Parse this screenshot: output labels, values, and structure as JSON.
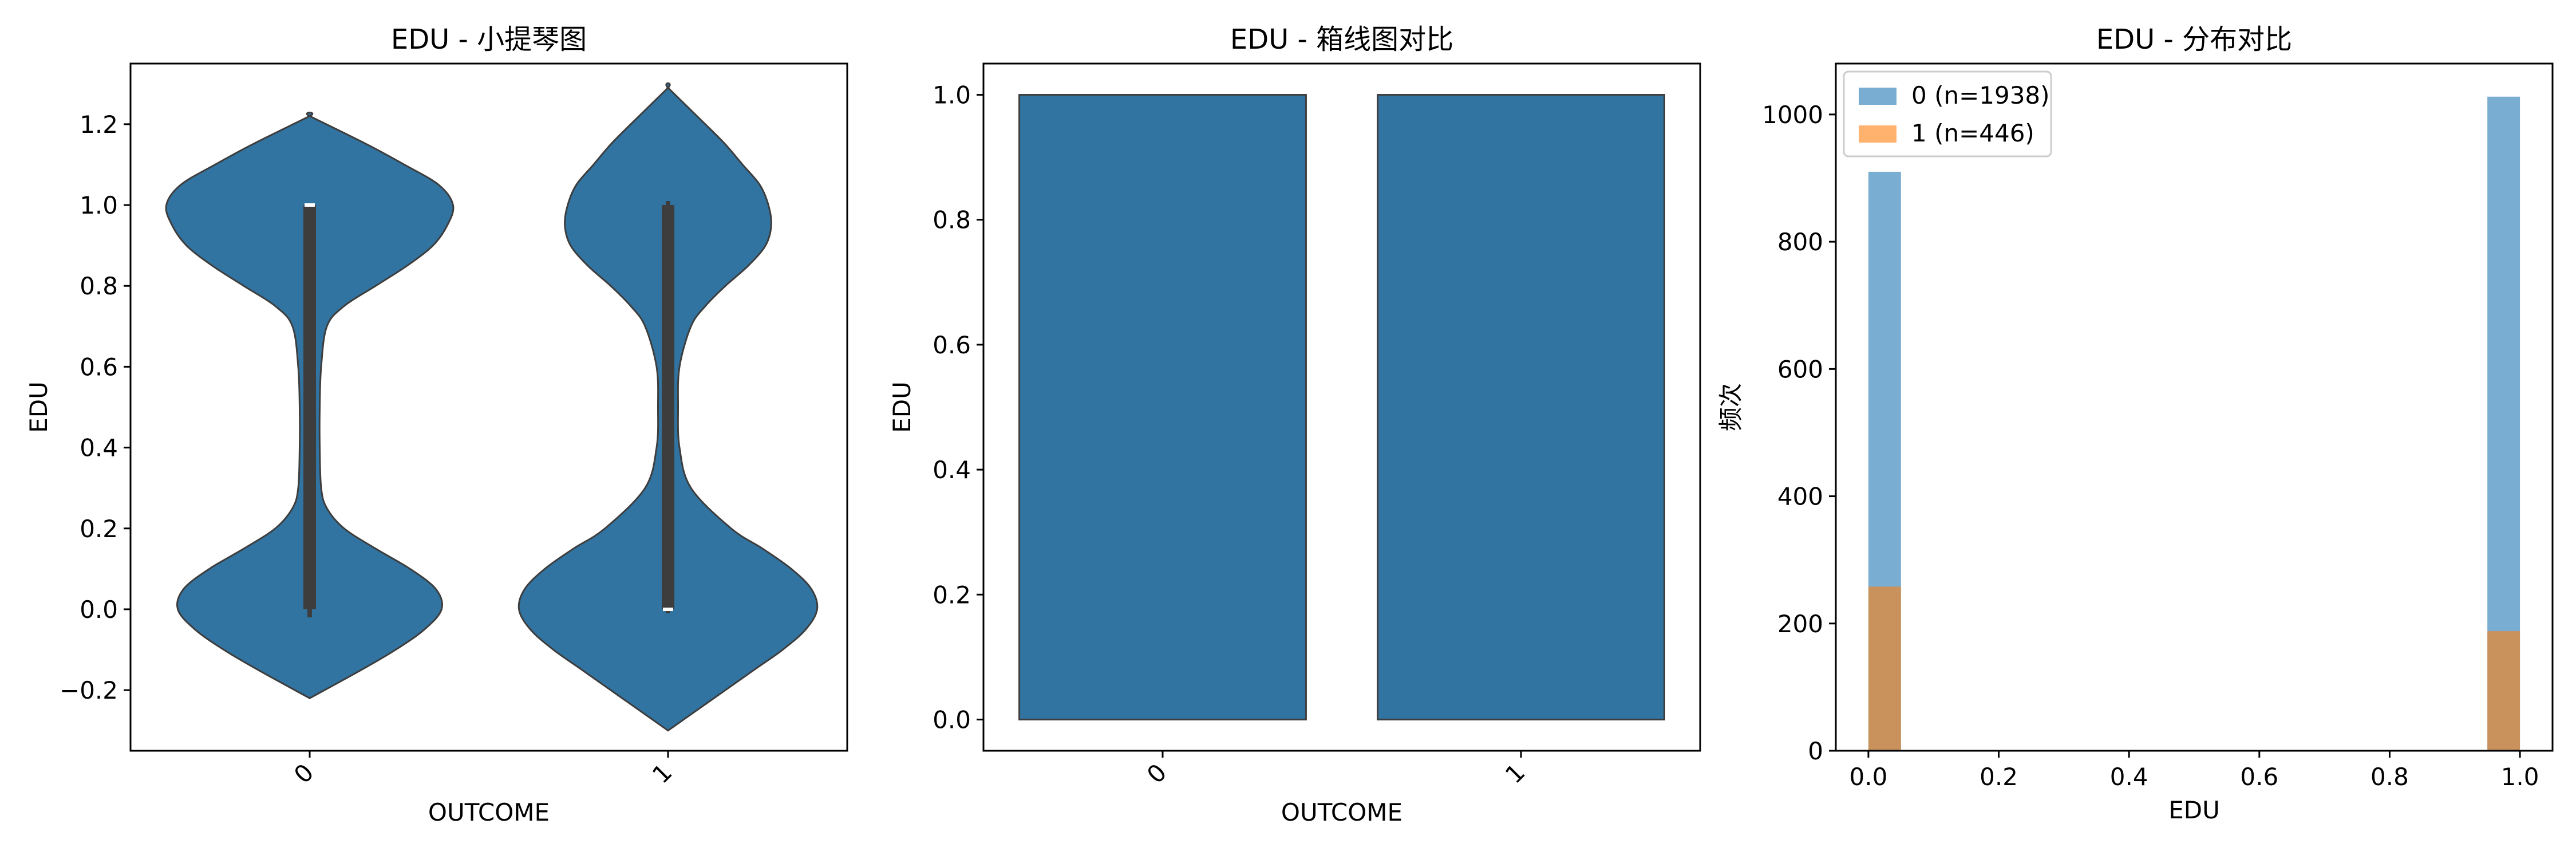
{
  "chart_data": [
    {
      "type": "violin",
      "title": "EDU - 小提琴图",
      "xlabel": "OUTCOME",
      "ylabel": "EDU",
      "categories": [
        "0",
        "1"
      ],
      "ylim": [
        -0.35,
        1.35
      ],
      "yticks": [
        -0.2,
        0.0,
        0.2,
        0.4,
        0.6,
        0.8,
        1.0,
        1.2
      ],
      "grid": false,
      "color": "#3274a1",
      "violins": [
        {
          "category": "0",
          "kde_y": [
            -0.22,
            -0.15,
            -0.1,
            -0.05,
            0.0,
            0.05,
            0.1,
            0.15,
            0.2,
            0.25,
            0.3,
            0.4,
            0.5,
            0.6,
            0.7,
            0.75,
            0.8,
            0.85,
            0.9,
            0.95,
            1.0,
            1.05,
            1.1,
            1.15,
            1.22
          ],
          "kde_halfwidth": [
            0.0,
            0.18,
            0.3,
            0.4,
            0.46,
            0.44,
            0.35,
            0.23,
            0.12,
            0.06,
            0.04,
            0.035,
            0.035,
            0.04,
            0.06,
            0.12,
            0.23,
            0.34,
            0.43,
            0.48,
            0.5,
            0.45,
            0.33,
            0.2,
            0.0
          ],
          "iqr": [
            0.0,
            1.0
          ],
          "whisker": [
            -0.02,
            1.0
          ],
          "median": 1.0
        },
        {
          "category": "1",
          "kde_y": [
            -0.3,
            -0.22,
            -0.15,
            -0.1,
            -0.05,
            0.0,
            0.05,
            0.1,
            0.15,
            0.2,
            0.3,
            0.4,
            0.5,
            0.6,
            0.7,
            0.75,
            0.8,
            0.85,
            0.9,
            0.95,
            1.0,
            1.05,
            1.1,
            1.15,
            1.2,
            1.29
          ],
          "kde_halfwidth": [
            0.0,
            0.16,
            0.3,
            0.4,
            0.48,
            0.52,
            0.5,
            0.43,
            0.33,
            0.22,
            0.08,
            0.04,
            0.035,
            0.04,
            0.08,
            0.13,
            0.2,
            0.28,
            0.34,
            0.36,
            0.35,
            0.32,
            0.26,
            0.2,
            0.13,
            0.0
          ],
          "iqr": [
            0.0,
            1.0
          ],
          "whisker": [
            -0.01,
            1.01
          ],
          "median": 0.0
        }
      ]
    },
    {
      "type": "box",
      "title": "EDU - 箱线图对比",
      "xlabel": "OUTCOME",
      "ylabel": "EDU",
      "categories": [
        "0",
        "1"
      ],
      "ylim": [
        -0.05,
        1.05
      ],
      "yticks": [
        0.0,
        0.2,
        0.4,
        0.6,
        0.8,
        1.0
      ],
      "grid": false,
      "color": "#3274a1",
      "boxes": [
        {
          "category": "0",
          "q1": 0.0,
          "q3": 1.0
        },
        {
          "category": "1",
          "q1": 0.0,
          "q3": 1.0
        }
      ]
    },
    {
      "type": "histogram",
      "title": "EDU - 分布对比",
      "xlabel": "EDU",
      "ylabel": "频次",
      "xlim": [
        -0.05,
        1.05
      ],
      "ylim": [
        0,
        1080
      ],
      "xticks": [
        0.0,
        0.2,
        0.4,
        0.6,
        0.8,
        1.0
      ],
      "yticks": [
        0,
        200,
        400,
        600,
        800,
        1000
      ],
      "bin_width": 0.05,
      "legend_position": "top-left",
      "grid": false,
      "series": [
        {
          "name": "0 (n=1938)",
          "color": "#1f77b4",
          "bins": [
            {
              "x0": 0.0,
              "count": 910
            },
            {
              "x0": 0.95,
              "count": 1028
            }
          ]
        },
        {
          "name": "1 (n=446)",
          "color": "#ff7f0e",
          "bins": [
            {
              "x0": 0.0,
              "count": 258
            },
            {
              "x0": 0.95,
              "count": 188
            }
          ]
        }
      ]
    }
  ]
}
